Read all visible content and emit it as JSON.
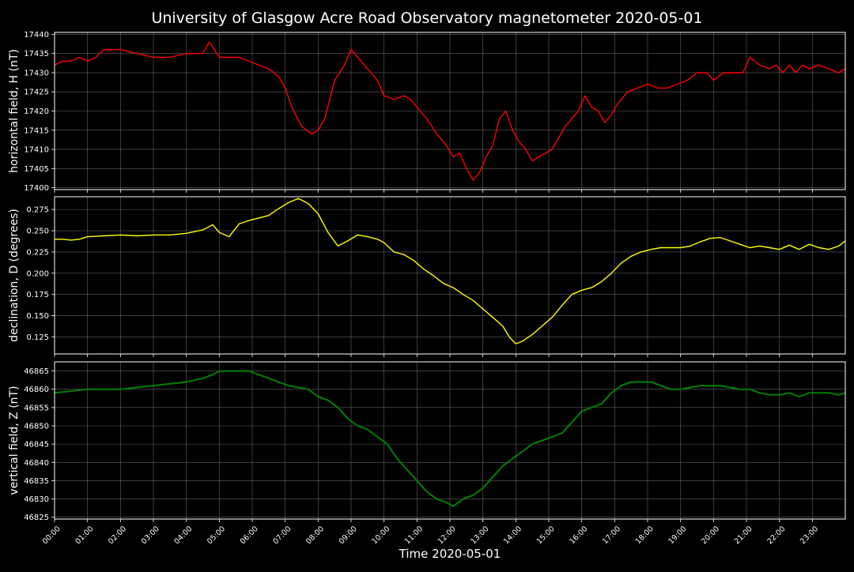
{
  "page": {
    "title": "University of Glasgow Acre Road Observatory magnetometer 2020-05-01",
    "xlabel": "Time 2020-05-01"
  },
  "chart_data": {
    "type": "line",
    "title": "University of Glasgow Acre Road Observatory magnetometer 2020-05-01",
    "xlabel": "Time 2020-05-01",
    "x_unit": "hours since 00:00",
    "xlim": [
      0,
      24
    ],
    "x_ticks": [
      "00:00",
      "01:00",
      "02:00",
      "03:00",
      "04:00",
      "05:00",
      "06:00",
      "07:00",
      "08:00",
      "09:00",
      "10:00",
      "11:00",
      "12:00",
      "13:00",
      "14:00",
      "15:00",
      "16:00",
      "17:00",
      "18:00",
      "19:00",
      "20:00",
      "21:00",
      "22:00",
      "23:00"
    ],
    "grid": true,
    "panels": [
      {
        "ylabel": "horizontal field, H (nT)",
        "color": "#ff0000",
        "ylim": [
          17399.5,
          17440.5
        ],
        "yticks": [
          "17400",
          "17405",
          "17410",
          "17415",
          "17420",
          "17425",
          "17430",
          "17435",
          "17440"
        ],
        "ytick_values": [
          17400,
          17405,
          17410,
          17415,
          17420,
          17425,
          17430,
          17435,
          17440
        ],
        "series": [
          {
            "x": [
              0,
              0.25,
              0.5,
              0.75,
              1.0,
              1.25,
              1.5,
              1.75,
              2.0,
              2.5,
              3.0,
              3.5,
              4.0,
              4.5,
              4.7,
              5.0,
              5.3,
              5.6,
              5.9,
              6.2,
              6.5,
              6.8,
              7.0,
              7.2,
              7.5,
              7.8,
              8.0,
              8.2,
              8.5,
              8.8,
              9.0,
              9.2,
              9.5,
              9.8,
              10.0,
              10.3,
              10.6,
              10.8,
              11.0,
              11.3,
              11.6,
              11.9,
              12.1,
              12.3,
              12.5,
              12.7,
              12.9,
              13.1,
              13.3,
              13.5,
              13.7,
              13.9,
              14.1,
              14.3,
              14.5,
              14.7,
              14.9,
              15.1,
              15.3,
              15.5,
              15.7,
              15.9,
              16.1,
              16.3,
              16.5,
              16.7,
              16.9,
              17.1,
              17.4,
              17.7,
              18.0,
              18.3,
              18.6,
              18.9,
              19.2,
              19.5,
              19.8,
              20.0,
              20.3,
              20.6,
              20.9,
              21.1,
              21.4,
              21.7,
              21.9,
              22.1,
              22.3,
              22.5,
              22.7,
              22.9,
              23.2,
              23.5,
              23.8,
              24.0
            ],
            "values": [
              17432,
              17433,
              17433,
              17434,
              17433,
              17434,
              17436,
              17436,
              17436,
              17435,
              17434,
              17434,
              17435,
              17435,
              17438,
              17434,
              17434,
              17434,
              17433,
              17432,
              17431,
              17429,
              17426,
              17421,
              17416,
              17414,
              17415,
              17418,
              17428,
              17432,
              17436,
              17434,
              17431,
              17428,
              17424,
              17423,
              17424,
              17423,
              17421,
              17418,
              17414,
              17411,
              17408,
              17409,
              17405,
              17402,
              17404,
              17408,
              17411,
              17418,
              17420,
              17415,
              17412,
              17410,
              17407,
              17408,
              17409,
              17410,
              17413,
              17416,
              17418,
              17420,
              17424,
              17421,
              17420,
              17417,
              17419,
              17422,
              17425,
              17426,
              17427,
              17426,
              17426,
              17427,
              17428,
              17430,
              17430,
              17428,
              17430,
              17430,
              17430,
              17434,
              17432,
              17431,
              17432,
              17430,
              17432,
              17430,
              17432,
              17431,
              17432,
              17431,
              17430,
              17431
            ]
          }
        ]
      },
      {
        "ylabel": "declination, D (degrees)",
        "color": "#ffff00",
        "ylim": [
          0.105,
          0.29
        ],
        "yticks": [
          "0.125",
          "0.150",
          "0.175",
          "0.200",
          "0.225",
          "0.250",
          "0.275"
        ],
        "ytick_values": [
          0.125,
          0.15,
          0.175,
          0.2,
          0.225,
          0.25,
          0.275
        ],
        "series": [
          {
            "x": [
              0,
              0.25,
              0.5,
              0.75,
              1.0,
              1.5,
              2.0,
              2.5,
              3.0,
              3.5,
              4.0,
              4.5,
              4.8,
              5.0,
              5.3,
              5.6,
              5.9,
              6.2,
              6.5,
              6.8,
              7.1,
              7.4,
              7.7,
              8.0,
              8.3,
              8.6,
              8.9,
              9.2,
              9.5,
              9.8,
              10.0,
              10.3,
              10.6,
              10.9,
              11.2,
              11.5,
              11.8,
              12.1,
              12.4,
              12.7,
              13.0,
              13.3,
              13.6,
              13.8,
              14.0,
              14.2,
              14.5,
              14.8,
              15.1,
              15.4,
              15.7,
              16.0,
              16.3,
              16.6,
              16.9,
              17.2,
              17.5,
              17.8,
              18.1,
              18.4,
              18.7,
              19.0,
              19.3,
              19.6,
              19.9,
              20.2,
              20.5,
              20.8,
              21.1,
              21.4,
              21.7,
              22.0,
              22.3,
              22.6,
              22.9,
              23.2,
              23.5,
              23.8,
              24.0
            ],
            "values": [
              0.24,
              0.24,
              0.239,
              0.24,
              0.243,
              0.244,
              0.245,
              0.244,
              0.245,
              0.245,
              0.247,
              0.251,
              0.257,
              0.248,
              0.243,
              0.258,
              0.262,
              0.265,
              0.268,
              0.276,
              0.283,
              0.288,
              0.282,
              0.27,
              0.248,
              0.232,
              0.238,
              0.245,
              0.243,
              0.24,
              0.236,
              0.225,
              0.222,
              0.215,
              0.205,
              0.197,
              0.188,
              0.183,
              0.175,
              0.168,
              0.158,
              0.148,
              0.138,
              0.125,
              0.117,
              0.12,
              0.128,
              0.138,
              0.148,
              0.162,
              0.175,
              0.18,
              0.183,
              0.19,
              0.2,
              0.212,
              0.22,
              0.225,
              0.228,
              0.23,
              0.23,
              0.23,
              0.232,
              0.237,
              0.241,
              0.242,
              0.238,
              0.234,
              0.23,
              0.232,
              0.23,
              0.228,
              0.233,
              0.228,
              0.234,
              0.23,
              0.228,
              0.232,
              0.238
            ]
          }
        ]
      },
      {
        "ylabel": "vertical field, Z (nT)",
        "color": "#008000",
        "ylim": [
          46824.5,
          46867.5
        ],
        "yticks": [
          "46825",
          "46830",
          "46835",
          "46840",
          "46845",
          "46850",
          "46855",
          "46860",
          "46865"
        ],
        "ytick_values": [
          46825,
          46830,
          46835,
          46840,
          46845,
          46850,
          46855,
          46860,
          46865
        ],
        "series": [
          {
            "x": [
              0,
              0.5,
              1.0,
              1.5,
              2.0,
              2.5,
              3.0,
              3.5,
              4.0,
              4.5,
              4.8,
              5.0,
              5.3,
              5.6,
              5.9,
              6.2,
              6.5,
              6.8,
              7.1,
              7.4,
              7.7,
              8.0,
              8.3,
              8.6,
              8.9,
              9.2,
              9.5,
              9.8,
              10.1,
              10.4,
              10.7,
              11.0,
              11.3,
              11.6,
              11.9,
              12.1,
              12.4,
              12.7,
              13.0,
              13.3,
              13.6,
              13.9,
              14.2,
              14.5,
              14.8,
              15.1,
              15.4,
              15.7,
              16.0,
              16.3,
              16.6,
              16.9,
              17.2,
              17.5,
              17.8,
              18.1,
              18.4,
              18.7,
              19.0,
              19.3,
              19.6,
              19.9,
              20.2,
              20.5,
              20.8,
              21.1,
              21.4,
              21.7,
              22.0,
              22.3,
              22.6,
              22.9,
              23.2,
              23.5,
              23.8,
              24.0
            ],
            "values": [
              46859,
              46859.5,
              46860,
              46860,
              46860,
              46860.5,
              46861,
              46861.5,
              46862,
              46863,
              46864,
              46865,
              46865,
              46865,
              46865,
              46864,
              46863,
              46862,
              46861,
              46860.5,
              46860,
              46858,
              46857,
              46855,
              46852,
              46850,
              46849,
              46847,
              46845,
              46841,
              46838,
              46835,
              46832,
              46830,
              46829,
              46828,
              46830,
              46831,
              46833,
              46836,
              46839,
              46841,
              46843,
              46845,
              46846,
              46847,
              46848,
              46851,
              46854,
              46855,
              46856,
              46859,
              46861,
              46862,
              46862,
              46862,
              46861,
              46860,
              46860,
              46860.5,
              46861,
              46861,
              46861,
              46860.5,
              46860,
              46860,
              46859,
              46858.5,
              46858.5,
              46859,
              46858,
              46859,
              46859,
              46859,
              46858.5,
              46859
            ]
          }
        ]
      }
    ]
  }
}
